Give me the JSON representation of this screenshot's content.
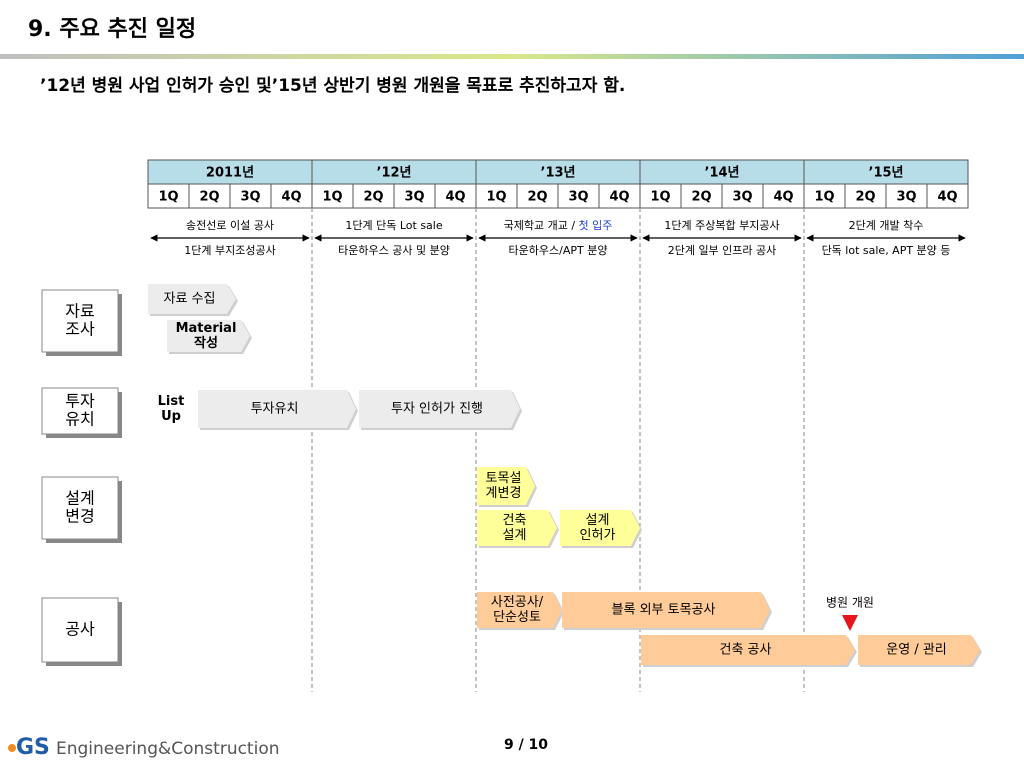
{
  "header": {
    "title": "9. 주요 추진 일정",
    "subtitle": "’12년 병원 사업 인허가 승인 및’15년 상반기 병원 개원을 목표로 추진하고자 함."
  },
  "table": {
    "years": [
      "2011년",
      "’12년",
      "’13년",
      "’14년",
      "’15년"
    ],
    "quarters": [
      "1Q",
      "2Q",
      "3Q",
      "4Q"
    ]
  },
  "milestones": [
    {
      "top": "송전선로 이설 공사",
      "bottom": "1단계 부지조성공사"
    },
    {
      "top": "1단계 단독 Lot sale",
      "bottom": "타운하우스 공사 및 분양"
    },
    {
      "top": "국제학교 개교 / ",
      "top_highlight": "첫 입주",
      "bottom": "타운하우스/APT 분양"
    },
    {
      "top": "1단계 주상복합 부지공사",
      "bottom": "2단계 일부 인프라 공사"
    },
    {
      "top": "2단계 개발 착수",
      "bottom": "단독 lot sale, APT 분양 등"
    }
  ],
  "rows": [
    {
      "label": [
        "자료",
        "조사"
      ],
      "tasks": [
        {
          "text": [
            "자료 수집"
          ]
        },
        {
          "text": [
            "Material",
            "작성"
          ]
        }
      ]
    },
    {
      "label": [
        "투자",
        "유치"
      ],
      "tasks": [
        {
          "text": [
            "List",
            "Up"
          ]
        },
        {
          "text": [
            "투자유치"
          ]
        },
        {
          "text": [
            "투자 인허가 진행"
          ]
        }
      ]
    },
    {
      "label": [
        "설계",
        "변경"
      ],
      "tasks": [
        {
          "text": [
            "토목설",
            "계변경"
          ]
        },
        {
          "text": [
            "건축",
            "설계"
          ]
        },
        {
          "text": [
            "설계",
            "인허가"
          ]
        }
      ]
    },
    {
      "label": [
        "공사"
      ],
      "tasks": [
        {
          "text": [
            "사전공사/",
            "단순성토"
          ]
        },
        {
          "text": [
            "블록 외부 토목공사"
          ]
        },
        {
          "text": [
            "건축 공사"
          ]
        },
        {
          "text": [
            "운영 / 관리"
          ]
        }
      ]
    }
  ],
  "event": "병원 개원",
  "footer": {
    "logo_mark": "GS",
    "logo_text": "Engineering&Construction",
    "page": "9 / 10"
  }
}
